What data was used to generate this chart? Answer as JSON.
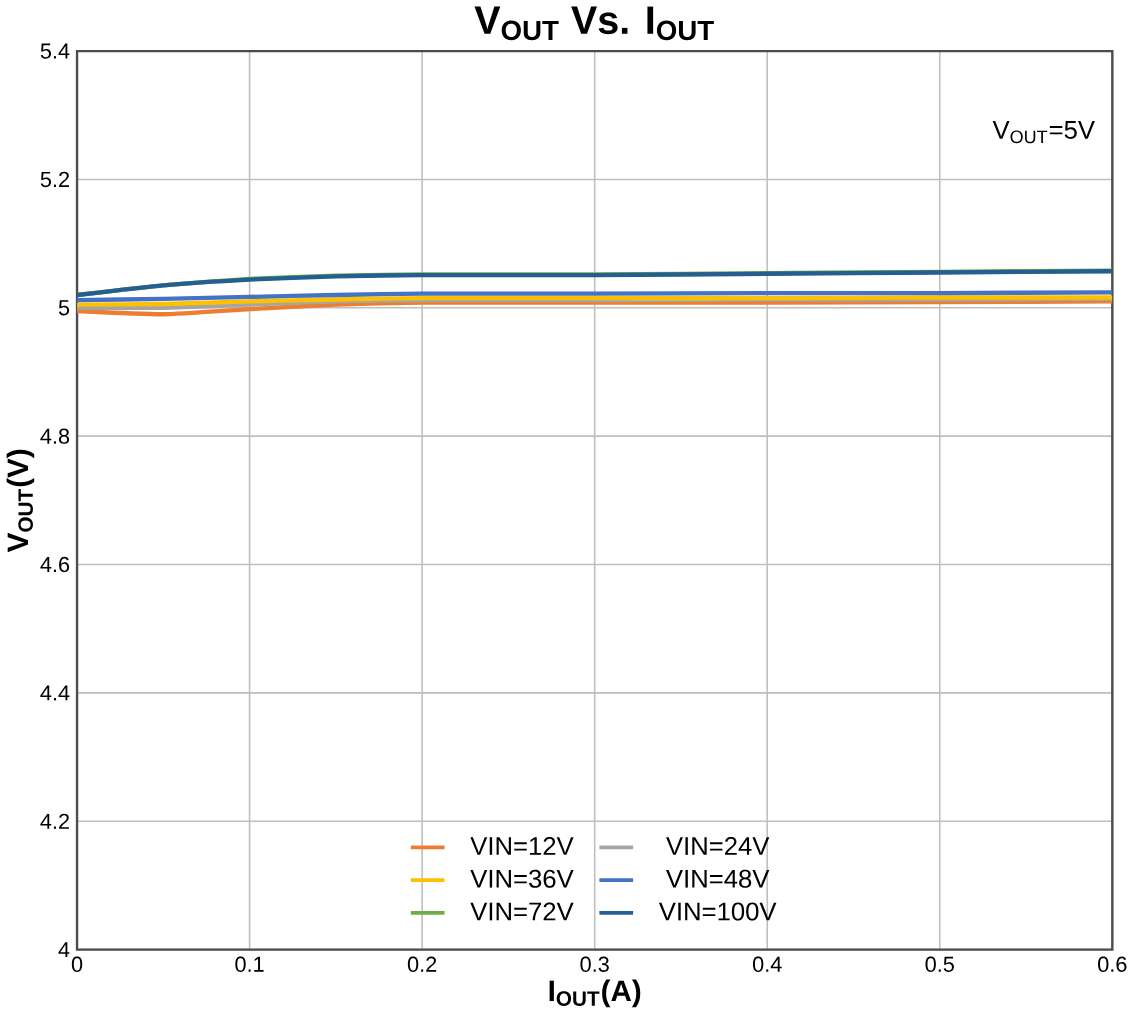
{
  "chart_data": {
    "type": "line",
    "title": "**V$_{OUT}$ Vs. I$_{OUT}$**",
    "xlabel": "**I$_{OUT}$(A)**",
    "ylabel": "**V$_{OUT}$(V)**",
    "annotations": [
      "V$_{OUT}$=5V"
    ],
    "x": [
      0,
      0.05,
      0.1,
      0.15,
      0.2,
      0.3,
      0.4,
      0.5,
      0.6
    ],
    "series": [
      {
        "name": "VIN=12V",
        "color": "#ed7d31",
        "values": [
          4.995,
          4.99,
          4.998,
          5.005,
          5.008,
          5.008,
          5.008,
          5.009,
          5.01
        ]
      },
      {
        "name": "VIN=24V",
        "color": "#a5a5a5",
        "values": [
          5.0,
          5.0,
          5.005,
          5.01,
          5.012,
          5.012,
          5.013,
          5.013,
          5.014
        ]
      },
      {
        "name": "VIN=36V",
        "color": "#ffc000",
        "values": [
          5.005,
          5.006,
          5.01,
          5.013,
          5.015,
          5.015,
          5.015,
          5.016,
          5.016
        ]
      },
      {
        "name": "VIN=48V",
        "color": "#4472c4",
        "values": [
          5.012,
          5.014,
          5.017,
          5.02,
          5.022,
          5.022,
          5.023,
          5.023,
          5.024
        ]
      },
      {
        "name": "VIN=72V",
        "color": "#70ad47",
        "values": [
          5.02,
          5.035,
          5.045,
          5.05,
          5.052,
          5.052,
          5.054,
          5.056,
          5.058
        ]
      },
      {
        "name": "VIN=100V",
        "color": "#255e91",
        "values": [
          5.02,
          5.035,
          5.044,
          5.049,
          5.051,
          5.051,
          5.053,
          5.055,
          5.057
        ]
      }
    ],
    "xlim": [
      0,
      0.6
    ],
    "ylim": [
      4,
      5.4
    ],
    "xticks": [
      0,
      0.1,
      0.2,
      0.3,
      0.4,
      0.5,
      0.6
    ],
    "yticks": [
      4,
      4.2,
      4.4,
      4.6,
      4.8,
      5,
      5.2,
      5.4
    ],
    "grid": true,
    "legend": "bottom",
    "marker": "none",
    "line_style": "solid"
  }
}
